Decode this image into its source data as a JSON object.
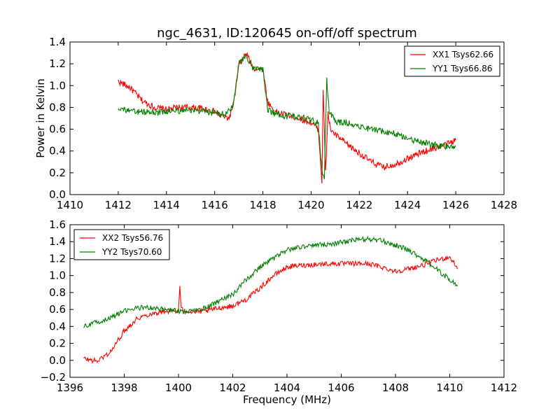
{
  "figure": {
    "title": "ngc_4631, ID:120645 on-off/off spectrum",
    "xlabel": "Frequency (MHz)",
    "ylabel": "Power in Kelvin"
  },
  "chart_data": [
    {
      "type": "line",
      "title": "ngc_4631, ID:120645 on-off/off spectrum",
      "xlabel": "",
      "ylabel": "Power in Kelvin",
      "xlim": [
        1410,
        1428
      ],
      "ylim": [
        0.0,
        1.4
      ],
      "xticks": [
        1410,
        1412,
        1414,
        1416,
        1418,
        1420,
        1422,
        1424,
        1426,
        1428
      ],
      "yticks": [
        0.0,
        0.2,
        0.4,
        0.6,
        0.8,
        1.0,
        1.2,
        1.4
      ],
      "legend_position": "top-right",
      "grid": false,
      "series": [
        {
          "name": "XX1 Tsys62.66",
          "color": "#ff0000",
          "x": [
            1412.0,
            1412.5,
            1413.0,
            1413.5,
            1414.0,
            1414.5,
            1415.0,
            1415.5,
            1416.0,
            1416.3,
            1416.6,
            1416.8,
            1417.0,
            1417.3,
            1417.6,
            1418.0,
            1418.2,
            1418.5,
            1419.0,
            1419.5,
            1420.0,
            1420.3,
            1420.45,
            1420.5,
            1420.6,
            1420.7,
            1420.8,
            1421.0,
            1421.5,
            1422.0,
            1422.5,
            1423.0,
            1423.5,
            1424.0,
            1424.5,
            1425.0,
            1425.5,
            1426.0
          ],
          "y": [
            1.04,
            0.98,
            0.86,
            0.8,
            0.78,
            0.8,
            0.8,
            0.79,
            0.76,
            0.72,
            0.7,
            0.85,
            1.18,
            1.3,
            1.16,
            1.15,
            0.85,
            0.76,
            0.73,
            0.7,
            0.66,
            0.6,
            0.12,
            0.97,
            0.2,
            0.75,
            0.6,
            0.55,
            0.46,
            0.38,
            0.3,
            0.25,
            0.28,
            0.33,
            0.38,
            0.42,
            0.45,
            0.5
          ]
        },
        {
          "name": "YY1 Tsys66.86",
          "color": "#008000",
          "x": [
            1412.0,
            1412.5,
            1413.0,
            1413.5,
            1414.0,
            1414.5,
            1415.0,
            1415.5,
            1416.0,
            1416.3,
            1416.6,
            1416.8,
            1417.0,
            1417.3,
            1417.6,
            1418.0,
            1418.2,
            1418.5,
            1419.0,
            1419.5,
            1420.0,
            1420.3,
            1420.45,
            1420.55,
            1420.65,
            1420.75,
            1421.0,
            1421.5,
            1422.0,
            1422.5,
            1423.0,
            1423.5,
            1424.0,
            1424.5,
            1425.0,
            1425.5,
            1426.0
          ],
          "y": [
            0.8,
            0.76,
            0.76,
            0.75,
            0.76,
            0.77,
            0.78,
            0.76,
            0.75,
            0.74,
            0.76,
            0.85,
            1.2,
            1.28,
            1.15,
            1.15,
            0.78,
            0.74,
            0.72,
            0.72,
            0.68,
            0.66,
            0.2,
            0.15,
            1.06,
            0.76,
            0.67,
            0.66,
            0.63,
            0.6,
            0.58,
            0.56,
            0.52,
            0.48,
            0.46,
            0.44,
            0.45
          ]
        }
      ]
    },
    {
      "type": "line",
      "title": "",
      "xlabel": "Frequency (MHz)",
      "ylabel": "",
      "xlim": [
        1396,
        1412
      ],
      "ylim": [
        -0.2,
        1.6
      ],
      "xticks": [
        1396,
        1398,
        1400,
        1402,
        1404,
        1406,
        1408,
        1410,
        1412
      ],
      "yticks": [
        -0.2,
        0.0,
        0.2,
        0.4,
        0.6,
        0.8,
        1.0,
        1.2,
        1.4,
        1.6
      ],
      "legend_position": "top-left",
      "grid": false,
      "series": [
        {
          "name": "XX2 Tsys56.76",
          "color": "#ff0000",
          "x": [
            1396.5,
            1397.0,
            1397.5,
            1398.0,
            1398.5,
            1399.0,
            1399.5,
            1400.0,
            1400.05,
            1400.1,
            1400.5,
            1401.0,
            1401.5,
            1402.0,
            1402.5,
            1403.0,
            1403.5,
            1404.0,
            1404.5,
            1405.0,
            1405.5,
            1406.0,
            1406.5,
            1407.0,
            1407.5,
            1408.0,
            1408.5,
            1409.0,
            1409.5,
            1410.0,
            1410.3
          ],
          "y": [
            0.02,
            -0.01,
            0.1,
            0.35,
            0.5,
            0.55,
            0.58,
            0.58,
            0.88,
            0.6,
            0.57,
            0.58,
            0.62,
            0.64,
            0.72,
            0.85,
            1.0,
            1.1,
            1.12,
            1.13,
            1.14,
            1.14,
            1.14,
            1.14,
            1.1,
            1.05,
            1.08,
            1.12,
            1.18,
            1.22,
            1.08
          ]
        },
        {
          "name": "YY2 Tsys70.60",
          "color": "#008000",
          "x": [
            1396.5,
            1397.0,
            1397.5,
            1398.0,
            1398.5,
            1399.0,
            1399.5,
            1400.0,
            1400.5,
            1401.0,
            1401.5,
            1402.0,
            1402.5,
            1403.0,
            1403.5,
            1404.0,
            1404.5,
            1405.0,
            1405.5,
            1406.0,
            1406.5,
            1407.0,
            1407.5,
            1408.0,
            1408.5,
            1409.0,
            1409.5,
            1410.0,
            1410.3
          ],
          "y": [
            0.4,
            0.45,
            0.5,
            0.58,
            0.62,
            0.62,
            0.6,
            0.58,
            0.58,
            0.62,
            0.7,
            0.78,
            0.95,
            1.1,
            1.2,
            1.3,
            1.34,
            1.36,
            1.37,
            1.39,
            1.42,
            1.43,
            1.41,
            1.36,
            1.3,
            1.2,
            1.08,
            0.95,
            0.88
          ]
        }
      ]
    }
  ]
}
